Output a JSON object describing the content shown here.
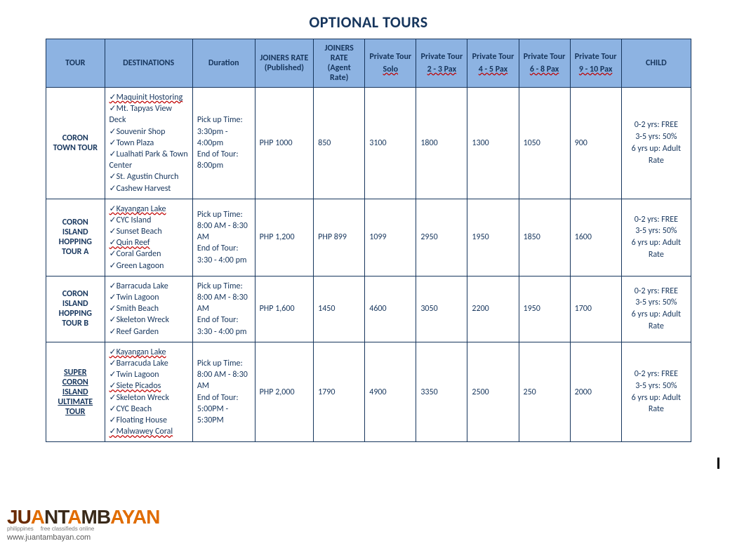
{
  "title": "OPTIONAL TOURS",
  "headers": {
    "tour": "TOUR",
    "destinations": "DESTINATIONS",
    "duration": "Duration",
    "joiners_published": "JOINERS RATE (Published)",
    "joiners_agent": "JOINERS RATE (Agent Rate)",
    "private": "Private Tour",
    "private_sub": [
      "Solo",
      "2 - 3 Pax",
      "4 - 5 Pax",
      "6 - 8 Pax",
      "9 - 10 Pax"
    ],
    "child": "CHILD"
  },
  "rows": [
    {
      "tour": "CORON TOWN TOUR",
      "tour_underline": false,
      "destinations": [
        {
          "t": "✓Maquinit Hostoring",
          "err": true
        },
        {
          "t": "✓Mt. Tapyas View Deck",
          "err": false
        },
        {
          "t": "✓Souvenir Shop",
          "err": false
        },
        {
          "t": "✓Town Plaza",
          "err": false
        },
        {
          "t": "✓Lualhati Park & Town Center",
          "err": false
        },
        {
          "t": "✓St. Agustin Church",
          "err": false
        },
        {
          "t": "✓Cashew Harvest",
          "err": false
        }
      ],
      "duration": "Pick up Time: 3:30pm - 4:00pm\nEnd of Tour: 8:00pm",
      "published": "PHP 1000",
      "agent": "850",
      "private": [
        "3100",
        "1800",
        "1300",
        "1050",
        "900"
      ],
      "child": "0-2 yrs: FREE\n3-5 yrs: 50%\n6 yrs up: Adult Rate"
    },
    {
      "tour": "CORON ISLAND HOPPING TOUR A",
      "tour_underline": false,
      "destinations": [
        {
          "t": "✓Kayangan Lake",
          "err": true
        },
        {
          "t": "✓CYC Island",
          "err": false
        },
        {
          "t": "✓Sunset Beach",
          "err": false
        },
        {
          "t": "✓Quin Reef",
          "err": true
        },
        {
          "t": "✓Coral Garden",
          "err": false
        },
        {
          "t": "✓Green Lagoon",
          "err": false
        }
      ],
      "duration": "Pick up Time: 8:00 AM - 8:30 AM\nEnd of Tour: 3:30 - 4:00 pm",
      "published": "PHP 1,200",
      "agent": "PHP 899",
      "private": [
        "1099",
        "2950",
        "1950",
        "1850",
        "1600"
      ],
      "child": "0-2 yrs: FREE\n3-5 yrs: 50%\n6 yrs up: Adult Rate"
    },
    {
      "tour": "CORON ISLAND HOPPING TOUR B",
      "tour_underline": false,
      "destinations": [
        {
          "t": "✓Barracuda Lake",
          "err": false
        },
        {
          "t": "✓Twin Lagoon",
          "err": false
        },
        {
          "t": "✓Smith Beach",
          "err": false
        },
        {
          "t": "✓Skeleton Wreck",
          "err": false
        },
        {
          "t": "✓Reef Garden",
          "err": false
        }
      ],
      "duration": "Pick up Time: 8:00 AM - 8:30 AM\nEnd of Tour: 3:30 - 4:00 pm",
      "published": "PHP 1,600",
      "agent": "1450",
      "private": [
        "4600",
        "3050",
        "2200",
        "1950",
        "1700"
      ],
      "child": "0-2 yrs: FREE\n3-5 yrs: 50%\n6 yrs up: Adult Rate"
    },
    {
      "tour": "SUPER CORON ISLAND ULTIMATE TOUR",
      "tour_underline": true,
      "destinations": [
        {
          "t": "✓Kayangan Lake",
          "err": true
        },
        {
          "t": "✓Barracuda Lake",
          "err": false
        },
        {
          "t": "✓Twin Lagoon",
          "err": false
        },
        {
          "t": "✓Siete Picados",
          "err": true
        },
        {
          "t": "✓Skeleton Wreck",
          "err": false
        },
        {
          "t": "✓CYC Beach",
          "err": false
        },
        {
          "t": "✓Floating House",
          "err": false
        },
        {
          "t": "✓Malwawey Coral",
          "err": true
        }
      ],
      "duration": "Pick up Time: 8:00 AM - 8:30 AM\nEnd of Tour: 5:00PM - 5:30PM",
      "published": "PHP 2,000",
      "agent": "1790",
      "private": [
        "4900",
        "3350",
        "2500",
        "250",
        "2000"
      ],
      "child": "0-2 yrs: FREE\n3-5 yrs: 50%\n6 yrs up: Adult Rate"
    }
  ],
  "watermark": {
    "brand_plain": "JUANTAMBAYAN",
    "sub_left": "philippines",
    "sub_right": "free classifieds online",
    "url": "www.juantambayan.com"
  },
  "palette": {
    "header_bg": "#8db3e2",
    "border": "#17365d",
    "text": "#17365d",
    "spellcheck": "#c00000",
    "page_bg": "#ffffff"
  }
}
